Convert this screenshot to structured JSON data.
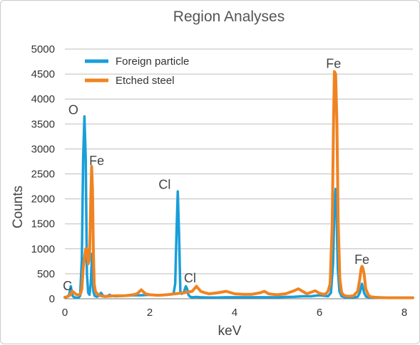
{
  "chart_data": {
    "type": "line",
    "title": "Region Analyses",
    "xlabel": "keV",
    "ylabel": "Counts",
    "xlim": [
      0,
      8.2
    ],
    "ylim": [
      0,
      5000
    ],
    "xticks": [
      0,
      2,
      4,
      6,
      8
    ],
    "yticks": [
      0,
      500,
      1000,
      1500,
      2000,
      2500,
      3000,
      3500,
      4000,
      4500,
      5000
    ],
    "grid": "horizontal",
    "legend_position": "top-left",
    "series": [
      {
        "name": "Foreign particle",
        "color": "#199ed9",
        "x": [
          0.0,
          0.05,
          0.1,
          0.14,
          0.18,
          0.22,
          0.27,
          0.32,
          0.36,
          0.4,
          0.43,
          0.46,
          0.49,
          0.52,
          0.55,
          0.58,
          0.61,
          0.64,
          0.67,
          0.7,
          0.75,
          0.8,
          0.85,
          0.9,
          0.95,
          1.0,
          1.05,
          1.1,
          1.2,
          1.4,
          1.6,
          1.8,
          2.0,
          2.2,
          2.4,
          2.5,
          2.56,
          2.6,
          2.63,
          2.66,
          2.69,
          2.72,
          2.75,
          2.8,
          2.85,
          2.88,
          2.91,
          2.95,
          3.0,
          3.1,
          3.2,
          3.4,
          3.6,
          3.8,
          4.0,
          4.2,
          4.4,
          4.6,
          4.8,
          5.0,
          5.2,
          5.4,
          5.6,
          5.8,
          5.9,
          6.0,
          6.1,
          6.2,
          6.27,
          6.32,
          6.35,
          6.38,
          6.4,
          6.43,
          6.47,
          6.52,
          6.6,
          6.7,
          6.8,
          6.9,
          6.95,
          7.0,
          7.05,
          7.1,
          7.2,
          7.4,
          7.6,
          7.8,
          8.0,
          8.2
        ],
        "y": [
          20,
          40,
          80,
          250,
          60,
          30,
          20,
          20,
          60,
          800,
          2800,
          3650,
          2800,
          500,
          120,
          80,
          300,
          900,
          150,
          60,
          40,
          60,
          120,
          60,
          40,
          50,
          80,
          60,
          50,
          60,
          70,
          70,
          80,
          70,
          80,
          90,
          100,
          300,
          1300,
          2150,
          1300,
          150,
          100,
          120,
          250,
          200,
          80,
          40,
          30,
          35,
          30,
          25,
          25,
          30,
          30,
          30,
          30,
          30,
          30,
          30,
          35,
          40,
          50,
          50,
          60,
          70,
          60,
          50,
          120,
          700,
          1800,
          2200,
          1800,
          600,
          150,
          50,
          30,
          25,
          30,
          40,
          120,
          300,
          120,
          40,
          25,
          20,
          20,
          20,
          20,
          20
        ]
      },
      {
        "name": "Etched steel",
        "color": "#f08321",
        "x": [
          0.0,
          0.05,
          0.1,
          0.14,
          0.18,
          0.22,
          0.28,
          0.33,
          0.37,
          0.4,
          0.43,
          0.46,
          0.49,
          0.52,
          0.55,
          0.58,
          0.61,
          0.63,
          0.65,
          0.67,
          0.69,
          0.72,
          0.76,
          0.8,
          0.85,
          0.9,
          1.0,
          1.2,
          1.4,
          1.6,
          1.7,
          1.8,
          1.9,
          2.0,
          2.2,
          2.4,
          2.6,
          2.8,
          3.0,
          3.1,
          3.2,
          3.3,
          3.4,
          3.6,
          3.8,
          4.0,
          4.2,
          4.4,
          4.6,
          4.7,
          4.8,
          5.0,
          5.2,
          5.4,
          5.5,
          5.6,
          5.7,
          5.8,
          5.9,
          6.0,
          6.1,
          6.15,
          6.2,
          6.25,
          6.3,
          6.33,
          6.35,
          6.38,
          6.41,
          6.44,
          6.48,
          6.52,
          6.56,
          6.6,
          6.7,
          6.8,
          6.9,
          6.95,
          6.98,
          7.0,
          7.02,
          7.05,
          7.09,
          7.15,
          7.2,
          7.3,
          7.4,
          7.6,
          7.8,
          8.0,
          8.2
        ],
        "y": [
          30,
          40,
          60,
          100,
          150,
          120,
          80,
          80,
          100,
          200,
          600,
          800,
          1000,
          1000,
          700,
          800,
          2000,
          2650,
          2200,
          1000,
          300,
          150,
          100,
          80,
          60,
          50,
          50,
          60,
          60,
          80,
          100,
          180,
          100,
          80,
          70,
          80,
          100,
          120,
          150,
          250,
          150,
          120,
          100,
          120,
          150,
          100,
          90,
          90,
          120,
          150,
          100,
          80,
          100,
          160,
          200,
          150,
          100,
          130,
          160,
          110,
          90,
          100,
          150,
          300,
          1500,
          3500,
          4550,
          4500,
          3500,
          1500,
          400,
          130,
          80,
          60,
          50,
          60,
          150,
          400,
          600,
          650,
          620,
          500,
          200,
          80,
          40,
          30,
          25,
          20,
          20,
          20,
          20
        ]
      }
    ],
    "annotations": [
      {
        "text": "C",
        "x": 0.06,
        "y": 170
      },
      {
        "text": "O",
        "x": 0.2,
        "y": 3700
      },
      {
        "text": "Fe",
        "x": 0.75,
        "y": 2680
      },
      {
        "text": "Cl",
        "x": 2.35,
        "y": 2200
      },
      {
        "text": "Cl",
        "x": 2.95,
        "y": 330
      },
      {
        "text": "Fe",
        "x": 6.33,
        "y": 4620
      },
      {
        "text": "Fe",
        "x": 7.0,
        "y": 700
      }
    ]
  }
}
